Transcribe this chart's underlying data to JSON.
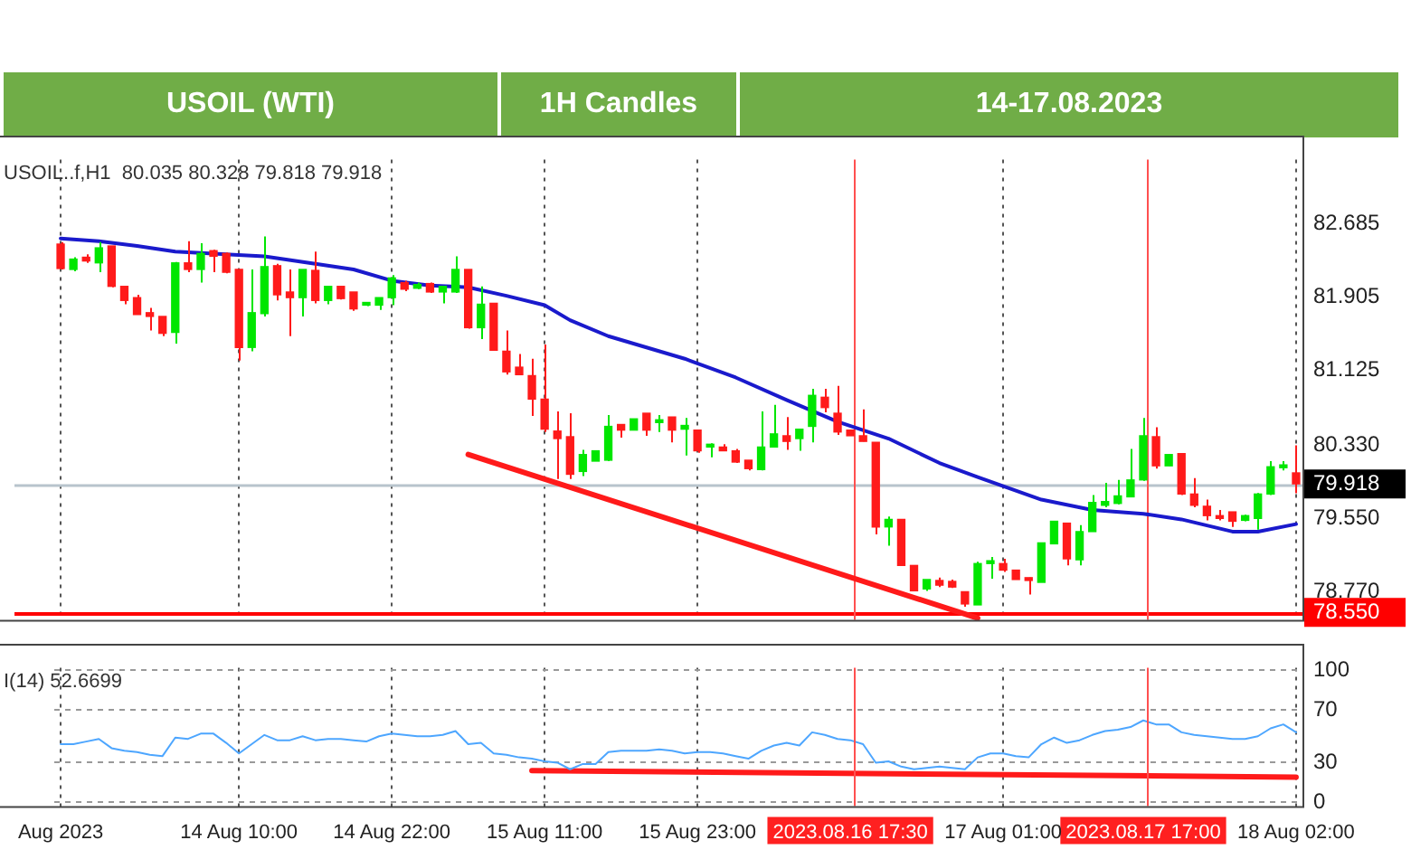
{
  "chart_data": [
    {
      "type": "candlestick",
      "title": "USOIL (WTI)",
      "subtitle": "1H Candles",
      "annotations": [
        "14-17.08.2023",
        "USOIL..f,H1  80.035 80.328 79.818 79.918"
      ],
      "categories": [
        "Aug 2023",
        null,
        null,
        null,
        null,
        null,
        null,
        null,
        null,
        null,
        null,
        null,
        null,
        null,
        "14 Aug 10:00",
        null,
        null,
        null,
        null,
        null,
        null,
        null,
        null,
        null,
        null,
        null,
        "14 Aug 22:00",
        null,
        null,
        null,
        null,
        null,
        null,
        null,
        null,
        null,
        null,
        null,
        "15 Aug 11:00",
        null,
        null,
        null,
        null,
        null,
        null,
        null,
        null,
        null,
        null,
        null,
        "15 Aug 23:00",
        null,
        null,
        null,
        null,
        null,
        null,
        null,
        null,
        null,
        null,
        null,
        "2023.08.16 17:30",
        null,
        null,
        null,
        null,
        null,
        null,
        null,
        null,
        null,
        null,
        null,
        "17 Aug 01:00",
        null,
        null,
        null,
        null,
        null,
        null,
        null,
        null,
        null,
        null,
        "2023.08.17 17:00",
        null,
        null,
        null,
        null,
        null,
        null,
        null,
        null,
        null,
        null,
        null,
        "18 Aug 02:00"
      ],
      "ohlc": [
        [
          82.47,
          82.49,
          82.2,
          82.21
        ],
        [
          82.2,
          82.33,
          82.18,
          82.31
        ],
        [
          82.33,
          82.36,
          82.27,
          82.29
        ],
        [
          82.27,
          82.49,
          82.17,
          82.43
        ],
        [
          82.45,
          82.45,
          82.01,
          82.02
        ],
        [
          82.02,
          82.02,
          81.83,
          81.87
        ],
        [
          81.9,
          81.93,
          81.72,
          81.72
        ],
        [
          81.74,
          81.79,
          81.55,
          81.7
        ],
        [
          81.7,
          81.7,
          81.49,
          81.52
        ],
        [
          81.53,
          82.28,
          81.41,
          82.27
        ],
        [
          82.27,
          82.5,
          82.17,
          82.2
        ],
        [
          82.2,
          82.48,
          82.06,
          82.37
        ],
        [
          82.4,
          82.41,
          82.17,
          82.34
        ],
        [
          82.37,
          82.38,
          82.16,
          82.17
        ],
        [
          82.2,
          82.2,
          81.23,
          81.37
        ],
        [
          81.37,
          82.2,
          81.33,
          81.74
        ],
        [
          81.73,
          82.55,
          81.7,
          82.23
        ],
        [
          82.24,
          82.26,
          81.87,
          81.93
        ],
        [
          81.96,
          82.2,
          81.49,
          81.9
        ],
        [
          81.9,
          82.2,
          81.7,
          82.2
        ],
        [
          82.19,
          82.39,
          81.84,
          81.87
        ],
        [
          81.87,
          82.02,
          81.83,
          82.02
        ],
        [
          82.02,
          82.02,
          81.88,
          81.89
        ],
        [
          81.96,
          81.96,
          81.76,
          81.78
        ],
        [
          81.82,
          81.85,
          81.81,
          81.84
        ],
        [
          81.82,
          81.9,
          81.77,
          81.9
        ],
        [
          81.9,
          82.14,
          81.82,
          82.11
        ],
        [
          82.06,
          82.08,
          81.97,
          81.99
        ],
        [
          82.0,
          82.06,
          81.99,
          82.04
        ],
        [
          82.05,
          82.06,
          81.95,
          81.96
        ],
        [
          81.96,
          82.02,
          81.84,
          82.02
        ],
        [
          81.96,
          82.34,
          81.95,
          82.2
        ],
        [
          82.2,
          82.2,
          81.57,
          81.58
        ],
        [
          81.58,
          82.02,
          81.46,
          81.83
        ],
        [
          81.84,
          81.84,
          81.34,
          81.34
        ],
        [
          81.33,
          81.55,
          81.08,
          81.11
        ],
        [
          81.16,
          81.3,
          81.08,
          81.08
        ],
        [
          81.07,
          81.25,
          80.64,
          80.82
        ],
        [
          80.82,
          81.4,
          80.47,
          80.5
        ],
        [
          80.48,
          80.69,
          79.97,
          80.4
        ],
        [
          80.42,
          80.67,
          79.97,
          80.02
        ],
        [
          80.05,
          80.28,
          80.0,
          80.23
        ],
        [
          80.16,
          80.27,
          80.16,
          80.27
        ],
        [
          80.17,
          80.65,
          80.16,
          80.53
        ],
        [
          80.55,
          80.55,
          80.41,
          80.49
        ],
        [
          80.49,
          80.61,
          80.49,
          80.61
        ],
        [
          80.67,
          80.67,
          80.43,
          80.49
        ],
        [
          80.57,
          80.65,
          80.47,
          80.6
        ],
        [
          80.63,
          80.63,
          80.36,
          80.49
        ],
        [
          80.5,
          80.62,
          80.22,
          80.54
        ],
        [
          80.49,
          80.49,
          80.25,
          80.27
        ],
        [
          80.31,
          80.35,
          80.2,
          80.34
        ],
        [
          80.31,
          80.34,
          80.27,
          80.27
        ],
        [
          80.27,
          80.29,
          80.14,
          80.15
        ],
        [
          80.17,
          80.17,
          80.06,
          80.08
        ],
        [
          80.07,
          80.69,
          80.06,
          80.31
        ],
        [
          80.31,
          80.76,
          80.31,
          80.45
        ],
        [
          80.43,
          80.63,
          80.28,
          80.37
        ],
        [
          80.4,
          80.5,
          80.27,
          80.5
        ],
        [
          80.53,
          80.93,
          80.36,
          80.86
        ],
        [
          80.84,
          80.93,
          80.68,
          80.73
        ],
        [
          80.67,
          80.96,
          80.44,
          80.47
        ],
        [
          80.49,
          80.49,
          80.43,
          80.43
        ],
        [
          80.43,
          80.71,
          80.37,
          80.37
        ],
        [
          80.36,
          80.36,
          79.38,
          79.46
        ],
        [
          79.46,
          79.57,
          79.26,
          79.54
        ],
        [
          79.54,
          79.54,
          79.05,
          79.05
        ],
        [
          79.05,
          79.05,
          78.78,
          78.78
        ],
        [
          78.8,
          78.9,
          78.78,
          78.9
        ],
        [
          78.89,
          78.92,
          78.82,
          78.84
        ],
        [
          78.88,
          78.9,
          78.81,
          78.82
        ],
        [
          78.77,
          78.77,
          78.61,
          78.64
        ],
        [
          78.63,
          79.09,
          78.63,
          79.07
        ],
        [
          79.07,
          79.14,
          78.91,
          79.1
        ],
        [
          79.07,
          79.12,
          78.98,
          79.0
        ],
        [
          79.0,
          79.0,
          78.9,
          78.9
        ],
        [
          78.92,
          78.92,
          78.74,
          78.89
        ],
        [
          78.87,
          79.29,
          78.87,
          79.29
        ],
        [
          79.28,
          79.52,
          79.28,
          79.52
        ],
        [
          79.5,
          79.5,
          79.05,
          79.12
        ],
        [
          79.11,
          79.48,
          79.05,
          79.41
        ],
        [
          79.41,
          79.8,
          79.41,
          79.72
        ],
        [
          79.69,
          79.93,
          79.67,
          79.73
        ],
        [
          79.71,
          79.96,
          79.7,
          79.79
        ],
        [
          79.78,
          80.29,
          79.78,
          79.96
        ],
        [
          79.96,
          80.62,
          79.95,
          80.43
        ],
        [
          80.42,
          80.52,
          80.08,
          80.11
        ],
        [
          80.11,
          80.23,
          80.11,
          80.23
        ],
        [
          80.24,
          80.24,
          79.8,
          79.81
        ],
        [
          79.81,
          79.98,
          79.67,
          79.69
        ],
        [
          79.68,
          79.75,
          79.53,
          79.58
        ],
        [
          79.58,
          79.64,
          79.53,
          79.55
        ],
        [
          79.62,
          79.62,
          79.46,
          79.52
        ],
        [
          79.53,
          79.59,
          79.52,
          79.58
        ],
        [
          79.55,
          79.82,
          79.43,
          79.81
        ],
        [
          79.81,
          80.16,
          79.8,
          80.1
        ],
        [
          80.09,
          80.16,
          80.06,
          80.12
        ],
        [
          80.035,
          80.328,
          79.818,
          79.918
        ]
      ],
      "series": [
        {
          "type": "line",
          "color": "#1a1acc",
          "values": [
            82.53,
            null,
            null,
            82.5,
            null,
            null,
            82.45,
            null,
            null,
            82.39,
            null,
            null,
            null,
            82.36,
            null,
            null,
            82.34,
            null,
            null,
            null,
            82.26,
            null,
            null,
            82.2,
            null,
            null,
            82.08,
            null,
            null,
            82.03,
            null,
            null,
            82.01,
            null,
            null,
            81.92,
            null,
            null,
            81.82,
            null,
            81.66,
            null,
            null,
            81.49,
            null,
            null,
            81.37,
            null,
            null,
            81.25,
            null,
            null,
            null,
            81.05,
            null,
            null,
            null,
            80.81,
            null,
            null,
            null,
            80.58,
            null,
            null,
            null,
            80.4,
            null,
            null,
            null,
            80.14,
            null,
            null,
            79.99,
            null,
            null,
            null,
            null,
            79.75,
            null,
            null,
            null,
            79.64,
            null,
            null,
            null,
            79.6,
            null,
            null,
            79.54,
            null,
            null,
            null,
            79.41,
            null,
            79.41,
            null,
            null,
            79.49
          ]
        },
        {
          "type": "line",
          "color": "#ff1a1a",
          "values": [
            null,
            null,
            null,
            null,
            null,
            null,
            null,
            null,
            null,
            null,
            null,
            null,
            null,
            null,
            null,
            null,
            null,
            null,
            null,
            null,
            null,
            null,
            null,
            null,
            null,
            null,
            null,
            null,
            null,
            null,
            null,
            null,
            80.23,
            null,
            null,
            null,
            null,
            null,
            null,
            null,
            null,
            null,
            null,
            null,
            null,
            null,
            null,
            null,
            null,
            null,
            null,
            null,
            null,
            null,
            null,
            null,
            null,
            null,
            null,
            null,
            null,
            null,
            null,
            null,
            null,
            null,
            null,
            null,
            null,
            null,
            null,
            null,
            78.49,
            null,
            null,
            null,
            null,
            null,
            null,
            null,
            null,
            null,
            null,
            null,
            null,
            null,
            null,
            null,
            null,
            null,
            null,
            null,
            null,
            null,
            null,
            null,
            null,
            null
          ]
        }
      ],
      "ylim": [
        78.47,
        83.37
      ],
      "yticks": [
        {
          "value": 78.77,
          "label": "78.770"
        },
        {
          "value": 79.55,
          "label": "79.550"
        },
        {
          "value": 80.33,
          "label": "80.330"
        },
        81.125,
        81.905,
        82.685
      ],
      "ref_lines": [
        {
          "axis": "y",
          "value": 79.918,
          "label": "79.918",
          "color": "#b8c4cc"
        },
        {
          "axis": "y",
          "value": 78.55,
          "label": "78.550",
          "color": "#ff0000"
        },
        {
          "axis": "x",
          "value": "2023.08.16 17:30",
          "color": "#ff5050"
        },
        {
          "axis": "x",
          "value": "2023.08.17 17:00",
          "color": "#ff5050"
        }
      ],
      "grid": "x",
      "tick_labels": "y"
    },
    {
      "type": "line",
      "annotations": [
        "I(14) 52.6699"
      ],
      "categories": [
        "Aug 2023",
        null,
        null,
        null,
        null,
        null,
        null,
        null,
        null,
        null,
        null,
        null,
        null,
        null,
        "14 Aug 10:00",
        null,
        null,
        null,
        null,
        null,
        null,
        null,
        null,
        null,
        null,
        null,
        "14 Aug 22:00",
        null,
        null,
        null,
        null,
        null,
        null,
        null,
        null,
        null,
        null,
        null,
        "15 Aug 11:00",
        null,
        null,
        null,
        null,
        null,
        null,
        null,
        null,
        null,
        null,
        null,
        "15 Aug 23:00",
        null,
        null,
        null,
        null,
        null,
        null,
        null,
        null,
        null,
        null,
        null,
        "2023.08.16 17:30",
        null,
        null,
        null,
        null,
        null,
        null,
        null,
        null,
        null,
        null,
        null,
        "17 Aug 01:00",
        null,
        null,
        null,
        null,
        null,
        null,
        null,
        null,
        null,
        null,
        "2023.08.17 17:00",
        null,
        null,
        null,
        null,
        null,
        null,
        null,
        null,
        null,
        null,
        null,
        "18 Aug 02:00"
      ],
      "series": [
        {
          "color": "#4da6ff",
          "values": [
            44,
            44,
            46,
            48,
            41,
            39,
            38,
            36,
            35,
            49,
            48,
            52,
            52,
            45,
            37,
            44,
            51,
            47,
            47,
            50,
            47,
            48,
            48,
            47,
            46,
            50,
            52,
            51,
            50,
            50,
            51,
            54,
            44,
            45,
            37,
            36,
            34,
            33,
            31,
            30,
            25,
            29,
            29,
            38,
            39,
            39,
            39,
            40,
            39,
            37,
            38,
            38,
            37,
            35,
            33,
            39,
            43,
            45,
            43,
            53,
            51,
            48,
            47,
            44,
            30,
            31,
            27,
            25,
            26,
            27,
            26,
            25,
            34,
            37,
            37,
            35,
            34,
            44,
            49,
            45,
            47,
            51,
            54,
            55,
            57,
            62,
            59,
            59,
            53,
            51,
            50,
            49,
            48,
            48,
            50,
            56,
            59,
            53
          ]
        },
        {
          "type": "line",
          "color": "#ff1a1a",
          "values": [
            null,
            null,
            null,
            null,
            null,
            null,
            null,
            null,
            null,
            null,
            null,
            null,
            null,
            null,
            null,
            null,
            null,
            null,
            null,
            null,
            null,
            null,
            null,
            null,
            null,
            null,
            null,
            null,
            null,
            null,
            null,
            null,
            null,
            null,
            null,
            null,
            null,
            24,
            null,
            null,
            null,
            null,
            null,
            null,
            null,
            null,
            null,
            null,
            null,
            null,
            null,
            null,
            null,
            null,
            null,
            null,
            null,
            null,
            null,
            null,
            null,
            null,
            null,
            null,
            null,
            null,
            null,
            null,
            null,
            null,
            null,
            null,
            null,
            null,
            null,
            null,
            null,
            null,
            null,
            null,
            null,
            null,
            null,
            null,
            null,
            null,
            null,
            null,
            null,
            null,
            null,
            null,
            null,
            null,
            null,
            null,
            null,
            19
          ]
        }
      ],
      "ylim": [
        -3,
        102
      ],
      "yticks": [
        0,
        30,
        70,
        100
      ],
      "ref_lines": [
        {
          "axis": "x",
          "value": "2023.08.16 17:30",
          "color": "#ff5050"
        },
        {
          "axis": "x",
          "value": "2023.08.17 17:00",
          "color": "#ff5050"
        }
      ],
      "grid": true
    }
  ]
}
